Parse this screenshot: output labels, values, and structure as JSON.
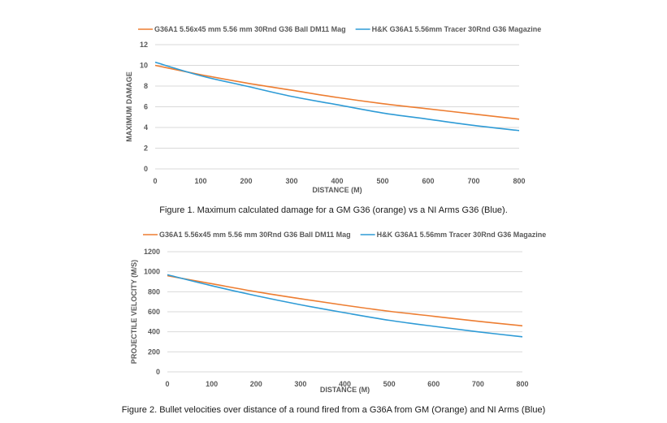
{
  "chart_data": [
    {
      "type": "line",
      "xlabel": "DISTANCE (M)",
      "ylabel": "MAXIMUM DAMAGE",
      "xlim": [
        0,
        800
      ],
      "ylim": [
        0,
        12
      ],
      "x_ticks": [
        0,
        100,
        200,
        300,
        400,
        500,
        600,
        700,
        800
      ],
      "y_ticks": [
        0,
        2,
        4,
        6,
        8,
        10,
        12
      ],
      "grid": "horizontal",
      "legend": "top",
      "caption": "Figure 1. Maximum calculated damage for a GM G36 (orange) vs a NI Arms G36 (Blue).",
      "series": [
        {
          "name": "G36A1 5.56x45 mm 5.56 mm 30Rnd G36 Ball DM11 Mag",
          "color": "#ED7D31",
          "x": [
            0,
            100,
            200,
            300,
            400,
            500,
            600,
            700,
            800
          ],
          "values": [
            10.0,
            9.1,
            8.3,
            7.6,
            6.9,
            6.3,
            5.8,
            5.3,
            4.8
          ]
        },
        {
          "name": "H&K G36A1 5.56mm Tracer 30Rnd G36 Magazine",
          "color": "#2E9BD6",
          "x": [
            0,
            100,
            200,
            300,
            400,
            500,
            600,
            700,
            800
          ],
          "values": [
            10.3,
            9.0,
            8.0,
            7.0,
            6.2,
            5.4,
            4.8,
            4.2,
            3.7
          ]
        }
      ]
    },
    {
      "type": "line",
      "xlabel": "DISTANCE (M)",
      "ylabel": "PROJECTILE VELOCITY (M/S)",
      "xlim": [
        0,
        800
      ],
      "ylim": [
        0,
        1200
      ],
      "x_ticks": [
        0,
        100,
        200,
        300,
        400,
        500,
        600,
        700,
        800
      ],
      "y_ticks": [
        0,
        200,
        400,
        600,
        800,
        1000,
        1200
      ],
      "grid": "horizontal",
      "legend": "top",
      "caption": "Figure 2. Bullet velocities over distance of a round fired from a G36A from GM (Orange) and NI Arms (Blue)",
      "series": [
        {
          "name": "G36A1 5.56x45 mm 5.56 mm 30Rnd G36 Ball DM11 Mag",
          "color": "#ED7D31",
          "x": [
            0,
            100,
            200,
            300,
            400,
            500,
            600,
            700,
            800
          ],
          "values": [
            960,
            880,
            800,
            730,
            665,
            605,
            555,
            505,
            460
          ]
        },
        {
          "name": "H&K G36A1 5.56mm Tracer 30Rnd G36 Magazine",
          "color": "#2E9BD6",
          "x": [
            0,
            100,
            200,
            300,
            400,
            500,
            600,
            700,
            800
          ],
          "values": [
            970,
            860,
            760,
            670,
            590,
            515,
            455,
            400,
            350
          ]
        }
      ]
    }
  ]
}
